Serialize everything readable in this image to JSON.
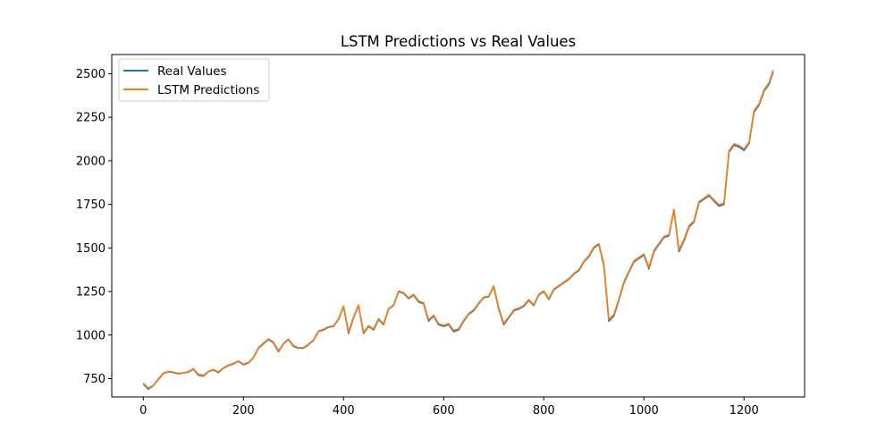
{
  "chart_data": {
    "type": "line",
    "title": "LSTM Predictions vs Real Values",
    "xlabel": "",
    "ylabel": "",
    "xlim": [
      -63,
      1321
    ],
    "ylim": [
      645,
      2610
    ],
    "xticks": [
      0,
      200,
      400,
      600,
      800,
      1000,
      1200
    ],
    "yticks": [
      750,
      1000,
      1250,
      1500,
      1750,
      2000,
      2250,
      2500
    ],
    "grid": false,
    "legend_position": "top-left",
    "series": [
      {
        "name": "Real Values",
        "color": "#1f77b4",
        "x": [
          0,
          10,
          20,
          30,
          40,
          50,
          60,
          70,
          80,
          90,
          100,
          110,
          120,
          130,
          140,
          150,
          160,
          170,
          180,
          190,
          200,
          210,
          220,
          230,
          240,
          250,
          260,
          270,
          280,
          290,
          300,
          310,
          320,
          330,
          340,
          350,
          360,
          370,
          380,
          390,
          400,
          410,
          420,
          430,
          440,
          450,
          460,
          470,
          480,
          490,
          500,
          510,
          520,
          530,
          540,
          550,
          560,
          570,
          580,
          590,
          600,
          610,
          620,
          630,
          640,
          650,
          660,
          670,
          680,
          690,
          700,
          710,
          720,
          730,
          740,
          750,
          760,
          770,
          780,
          790,
          800,
          810,
          820,
          830,
          840,
          850,
          860,
          870,
          880,
          890,
          900,
          910,
          920,
          930,
          940,
          950,
          960,
          970,
          980,
          990,
          1000,
          1010,
          1020,
          1030,
          1040,
          1050,
          1060,
          1070,
          1080,
          1090,
          1100,
          1110,
          1120,
          1130,
          1140,
          1150,
          1160,
          1170,
          1180,
          1190,
          1200,
          1210,
          1220,
          1230,
          1240,
          1250,
          1258
        ],
        "values": [
          720,
          690,
          710,
          745,
          780,
          790,
          785,
          778,
          782,
          788,
          805,
          770,
          765,
          790,
          800,
          785,
          810,
          825,
          835,
          850,
          830,
          840,
          870,
          925,
          950,
          975,
          955,
          905,
          950,
          975,
          935,
          925,
          925,
          945,
          970,
          1020,
          1030,
          1045,
          1050,
          1090,
          1165,
          1010,
          1100,
          1170,
          1010,
          1050,
          1030,
          1090,
          1060,
          1150,
          1170,
          1250,
          1240,
          1210,
          1230,
          1190,
          1180,
          1080,
          1110,
          1060,
          1050,
          1060,
          1020,
          1030,
          1080,
          1120,
          1140,
          1180,
          1215,
          1220,
          1280,
          1150,
          1060,
          1100,
          1140,
          1150,
          1165,
          1200,
          1170,
          1230,
          1250,
          1205,
          1260,
          1280,
          1300,
          1320,
          1350,
          1370,
          1420,
          1450,
          1500,
          1520,
          1400,
          1080,
          1110,
          1200,
          1300,
          1360,
          1420,
          1440,
          1460,
          1380,
          1480,
          1520,
          1560,
          1570,
          1720,
          1480,
          1540,
          1620,
          1650,
          1760,
          1780,
          1800,
          1770,
          1740,
          1750,
          2050,
          2090,
          2080,
          2060,
          2100,
          2280,
          2320,
          2400,
          2440,
          2510
        ],
        "point_stride": 10
      },
      {
        "name": "LSTM Predictions",
        "color": "#ff7f0e",
        "x": [
          0,
          10,
          20,
          30,
          40,
          50,
          60,
          70,
          80,
          90,
          100,
          110,
          120,
          130,
          140,
          150,
          160,
          170,
          180,
          190,
          200,
          210,
          220,
          230,
          240,
          250,
          260,
          270,
          280,
          290,
          300,
          310,
          320,
          330,
          340,
          350,
          360,
          370,
          380,
          390,
          400,
          410,
          420,
          430,
          440,
          450,
          460,
          470,
          480,
          490,
          500,
          510,
          520,
          530,
          540,
          550,
          560,
          570,
          580,
          590,
          600,
          610,
          620,
          630,
          640,
          650,
          660,
          670,
          680,
          690,
          700,
          710,
          720,
          730,
          740,
          750,
          760,
          770,
          780,
          790,
          800,
          810,
          820,
          830,
          840,
          850,
          860,
          870,
          880,
          890,
          900,
          910,
          920,
          930,
          940,
          950,
          960,
          970,
          980,
          990,
          1000,
          1010,
          1020,
          1030,
          1040,
          1050,
          1060,
          1070,
          1080,
          1090,
          1100,
          1110,
          1120,
          1130,
          1140,
          1150,
          1160,
          1170,
          1180,
          1190,
          1200,
          1210,
          1220,
          1230,
          1240,
          1250,
          1258
        ],
        "values": [
          724,
          696,
          712,
          748,
          782,
          792,
          788,
          781,
          784,
          790,
          808,
          775,
          769,
          792,
          803,
          789,
          812,
          828,
          838,
          852,
          834,
          843,
          872,
          928,
          954,
          978,
          960,
          910,
          952,
          978,
          940,
          928,
          928,
          948,
          973,
          1023,
          1034,
          1048,
          1053,
          1093,
          1168,
          1018,
          1104,
          1173,
          1016,
          1054,
          1035,
          1094,
          1065,
          1153,
          1173,
          1253,
          1244,
          1214,
          1234,
          1196,
          1185,
          1088,
          1114,
          1066,
          1056,
          1066,
          1028,
          1036,
          1085,
          1124,
          1145,
          1184,
          1218,
          1224,
          1283,
          1157,
          1068,
          1105,
          1145,
          1155,
          1170,
          1204,
          1175,
          1234,
          1254,
          1210,
          1264,
          1284,
          1304,
          1324,
          1354,
          1375,
          1424,
          1455,
          1505,
          1525,
          1410,
          1090,
          1118,
          1207,
          1306,
          1366,
          1426,
          1446,
          1466,
          1388,
          1486,
          1526,
          1566,
          1576,
          1722,
          1490,
          1548,
          1628,
          1656,
          1766,
          1786,
          1806,
          1776,
          1748,
          1758,
          2058,
          2098,
          2088,
          2068,
          2108,
          2288,
          2328,
          2408,
          2448,
          2520
        ],
        "point_stride": 10
      }
    ]
  }
}
